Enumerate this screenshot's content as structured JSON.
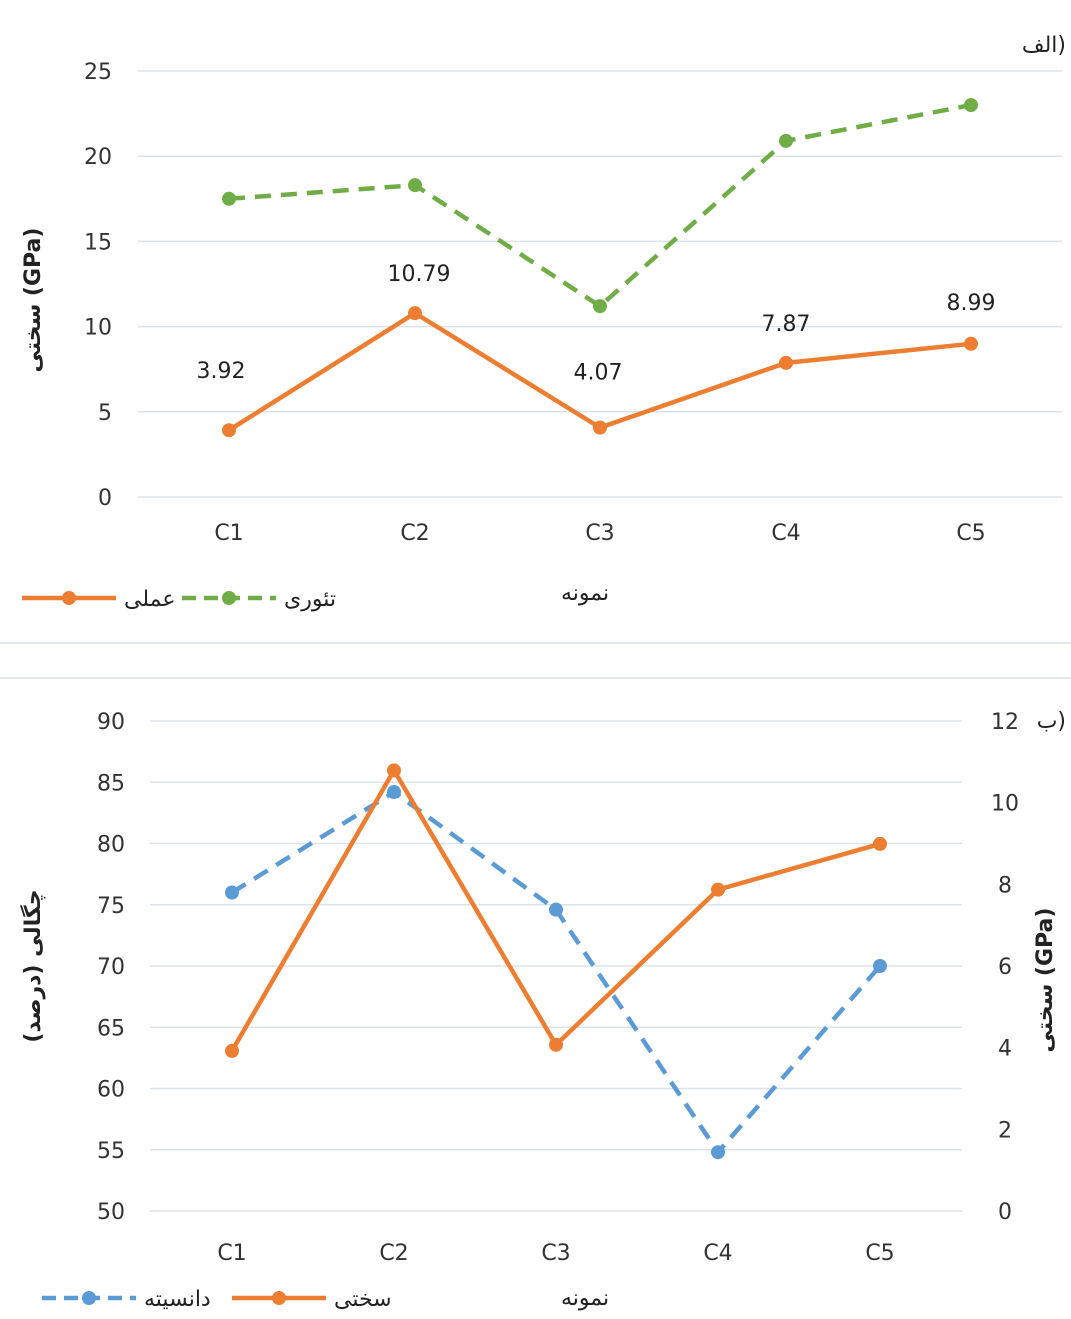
{
  "chart_data": [
    {
      "type": "line",
      "panel_label": "الف)",
      "categories": [
        "C1",
        "C2",
        "C3",
        "C4",
        "C5"
      ],
      "xlabel": "نمونه",
      "ylabel": "سختی (GPa)",
      "ylim": [
        0,
        25
      ],
      "yticks": [
        0,
        5,
        10,
        15,
        20,
        25
      ],
      "grid": true,
      "legend_position": "bottom-left",
      "series": [
        {
          "name": "عملی",
          "values": [
            3.92,
            10.79,
            4.07,
            7.87,
            8.99
          ],
          "data_labels": [
            "3.92",
            "10.79",
            "4.07",
            "7.87",
            "8.99"
          ],
          "color": "#ed7d31",
          "style": "solid"
        },
        {
          "name": "تئوری",
          "values": [
            17.5,
            18.3,
            11.2,
            20.9,
            23.0
          ],
          "color": "#70ad47",
          "style": "dashed"
        }
      ]
    },
    {
      "type": "line",
      "panel_label": "ب)",
      "categories": [
        "C1",
        "C2",
        "C3",
        "C4",
        "C5"
      ],
      "xlabel": "نمونه",
      "ylabel_left": "چگالی (درصد)",
      "ylabel_right": "سختی (GPa)",
      "ylim_left": [
        50,
        90
      ],
      "yticks_left": [
        50,
        55,
        60,
        65,
        70,
        75,
        80,
        85,
        90
      ],
      "ylim_right": [
        0,
        12
      ],
      "yticks_right": [
        0,
        2,
        4,
        6,
        8,
        10,
        12
      ],
      "grid": true,
      "legend_position": "bottom-left",
      "series": [
        {
          "name": "دانسیته",
          "axis": "left",
          "values": [
            76.0,
            84.2,
            74.6,
            54.8,
            70.0
          ],
          "color": "#5b9bd5",
          "style": "dashed"
        },
        {
          "name": "سختی",
          "axis": "right",
          "values": [
            3.92,
            10.79,
            4.07,
            7.87,
            8.99
          ],
          "color": "#ed7d31",
          "style": "solid"
        }
      ]
    }
  ]
}
